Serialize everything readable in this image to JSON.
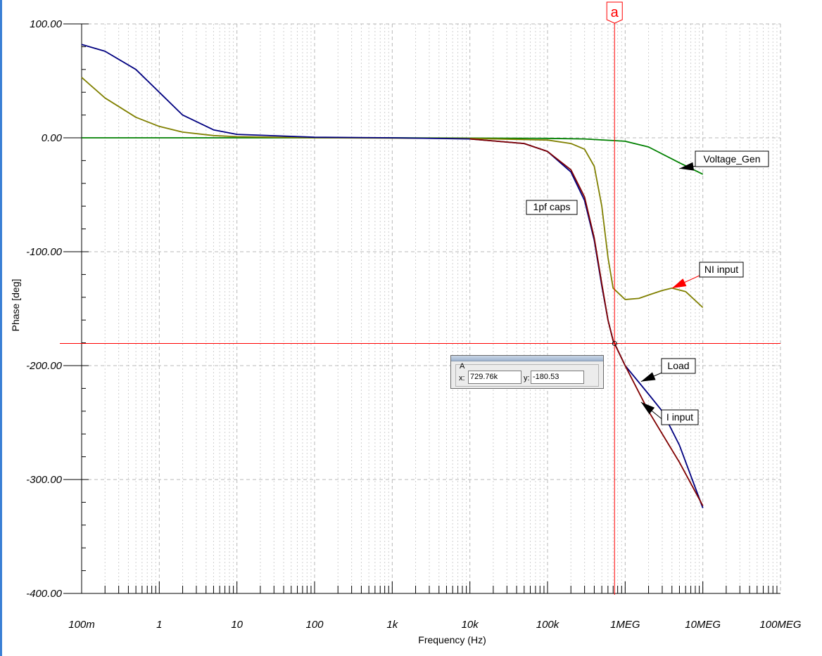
{
  "chart_data": {
    "type": "line",
    "xscale": "log",
    "xlim": [
      0.1,
      100000000
    ],
    "ylim": [
      -400,
      100
    ],
    "xlabel": "Frequency (Hz)",
    "ylabel": "Phase [deg]",
    "grid": true,
    "x_ticks": [
      {
        "value": 0.1,
        "label": "100m"
      },
      {
        "value": 1,
        "label": "1"
      },
      {
        "value": 10,
        "label": "10"
      },
      {
        "value": 100,
        "label": "100"
      },
      {
        "value": 1000,
        "label": "1k"
      },
      {
        "value": 10000,
        "label": "10k"
      },
      {
        "value": 100000,
        "label": "100k"
      },
      {
        "value": 1000000,
        "label": "1MEG"
      },
      {
        "value": 10000000,
        "label": "10MEG"
      },
      {
        "value": 100000000,
        "label": "100MEG"
      }
    ],
    "y_ticks": [
      {
        "value": 100,
        "label": "100.00"
      },
      {
        "value": 0,
        "label": "0.00"
      },
      {
        "value": -100,
        "label": "-100.00"
      },
      {
        "value": -200,
        "label": "-200.00"
      },
      {
        "value": -300,
        "label": "-300.00"
      },
      {
        "value": -400,
        "label": "-400.00"
      }
    ],
    "series": [
      {
        "name": "Voltage_Gen",
        "color": "#008000",
        "x": [
          0.1,
          1000,
          100000,
          300000,
          1000000,
          2000000,
          5000000,
          10000000
        ],
        "y": [
          0,
          0,
          -0.5,
          -1,
          -3,
          -8,
          -22,
          -32
        ]
      },
      {
        "name": "NI input",
        "color": "#808000",
        "x": [
          0.1,
          0.2,
          0.5,
          1,
          2,
          5,
          10,
          100,
          10000,
          100000,
          200000,
          300000,
          400000,
          500000,
          600000,
          700000,
          1000000,
          1500000,
          2000000,
          3000000,
          4000000,
          6000000,
          10000000
        ],
        "y": [
          53,
          35,
          18,
          10,
          5,
          2,
          1,
          0,
          -0.5,
          -2,
          -5,
          -10,
          -25,
          -60,
          -105,
          -132,
          -142,
          -141,
          -138,
          -134,
          -132,
          -135,
          -149
        ]
      },
      {
        "name": "Load",
        "color": "#000080",
        "x": [
          0.1,
          0.2,
          0.5,
          1,
          2,
          5,
          10,
          100,
          1000,
          10000,
          50000,
          100000,
          200000,
          300000,
          400000,
          500000,
          600000,
          700000,
          1000000,
          2000000,
          3000000,
          5000000,
          10000000
        ],
        "y": [
          82,
          76,
          60,
          40,
          20,
          7,
          3,
          0.5,
          0,
          -1,
          -5,
          -12,
          -30,
          -55,
          -90,
          -130,
          -160,
          -178,
          -200,
          -225,
          -240,
          -270,
          -325
        ]
      },
      {
        "name": "I input",
        "color": "#800000",
        "x": [
          10000,
          50000,
          100000,
          200000,
          300000,
          400000,
          500000,
          600000,
          700000,
          1000000,
          2000000,
          5000000,
          10000000
        ],
        "y": [
          -1,
          -5,
          -12,
          -28,
          -52,
          -88,
          -128,
          -160,
          -178,
          -200,
          -240,
          -285,
          -323
        ]
      }
    ],
    "annotations": [
      {
        "text": "Voltage_Gen",
        "color": "#000000",
        "arrow": true
      },
      {
        "text": "NI input",
        "color": "#ff0000",
        "arrow": true
      },
      {
        "text": "Load",
        "color": "#000000",
        "arrow": true
      },
      {
        "text": "I input",
        "color": "#000000",
        "arrow": true
      },
      {
        "text": "1pf caps",
        "color": "#000000",
        "arrow": false
      }
    ],
    "cursor": {
      "label": "a",
      "x": 729760,
      "y": -180.53,
      "color": "#ff0000"
    }
  },
  "cursor_readout": {
    "title": "A",
    "x_label": "x:",
    "x_value": "729.76k",
    "y_label": "y:",
    "y_value": "-180.53"
  }
}
